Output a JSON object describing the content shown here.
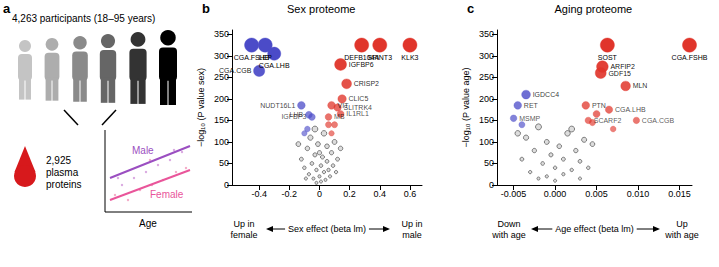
{
  "panel_a": {
    "panel_label": "a",
    "participants": "4,263 participants (18–95 years)",
    "proteins": "2,925\nplasma\nproteins",
    "male": "Male",
    "female": "Female",
    "x_label": "Age"
  },
  "chart_data": [
    {
      "type": "scatter",
      "panel_label": "b",
      "title": "Sex proteome",
      "x_label": "Sex effect (beta lm)",
      "y_label": "−log₁₀ (P value sex)",
      "x_annotations": {
        "left": "Up in\nfemale",
        "right": "Up in\nmale"
      },
      "xlim": [
        -0.58,
        0.68
      ],
      "xticks": [
        -0.4,
        -0.2,
        0,
        0.2,
        0.4,
        0.6
      ],
      "ylim": [
        0,
        360
      ],
      "yticks": [
        0,
        50,
        100,
        150,
        200,
        250,
        300,
        350
      ],
      "grid": false,
      "series": [
        {
          "color": "#4b4bc8",
          "marker": "circle",
          "x": [
            -0.45,
            -0.36,
            -0.3,
            -0.4,
            -0.12,
            -0.07,
            -0.05,
            -0.08,
            -0.1
          ],
          "y": [
            325,
            325,
            305,
            265,
            185,
            163,
            158,
            130,
            120
          ],
          "labels": [
            "CGA.FSHB",
            "LEP",
            "CGA.LHB",
            "CGA.CGB",
            "NUDT16L1",
            "LHB",
            "IGFBP3",
            null,
            null
          ]
        },
        {
          "color": "#e0352b",
          "marker": "circle",
          "x": [
            0.28,
            0.4,
            0.6,
            0.14,
            0.18,
            0.15,
            0.08,
            0.12,
            0.06,
            0.14,
            0.08,
            0.1,
            0.06
          ],
          "y": [
            325,
            325,
            325,
            280,
            235,
            200,
            185,
            180,
            158,
            165,
            120,
            140,
            140
          ],
          "labels": [
            "DEFB104A",
            "SPINT3",
            "KLK3",
            "IGFBP6",
            "CRISP2",
            "CLIC5",
            "VIT",
            "SLITRK4",
            "MB",
            "IL1RL1",
            null,
            null,
            null
          ]
        },
        {
          "color": "#dddddd",
          "marker": "circle",
          "x": [
            -0.12,
            -0.1,
            -0.08,
            -0.07,
            -0.06,
            -0.05,
            -0.04,
            -0.03,
            -0.02,
            -0.02,
            -0.01,
            0,
            0.01,
            0.01,
            0.02,
            0.03,
            0.03,
            0.04,
            0.05,
            0.05,
            0.06,
            0.07,
            0.08,
            0.09,
            0.1,
            0.11,
            0.12,
            -0.09,
            -0.14,
            0.14,
            -0.03,
            0
          ],
          "y": [
            60,
            40,
            85,
            25,
            110,
            50,
            15,
            70,
            35,
            5,
            95,
            20,
            45,
            8,
            65,
            30,
            120,
            12,
            55,
            90,
            35,
            20,
            75,
            45,
            100,
            30,
            60,
            15,
            95,
            85,
            130,
            75
          ],
          "labels": [
            null,
            null,
            null,
            null,
            null,
            null,
            null,
            null,
            null,
            null,
            null,
            null,
            null,
            null,
            null,
            null,
            null,
            null,
            null,
            null,
            null,
            null,
            null,
            null,
            null,
            null,
            null,
            null,
            null,
            null,
            null,
            null
          ]
        }
      ]
    },
    {
      "type": "scatter",
      "panel_label": "c",
      "title": "Aging proteome",
      "x_label": "Age effect (beta lm)",
      "y_label": "−log₁₀ (P value age)",
      "x_annotations": {
        "left": "Down\nwith age",
        "right": "Up\nwith age"
      },
      "xlim": [
        -0.007,
        0.0165
      ],
      "xticks": [
        -0.005,
        {
          "value": 0,
          "label": "0.000"
        },
        0.005,
        {
          "value": 0.01,
          "label": "0.010"
        },
        0.015
      ],
      "ylim": [
        0,
        360
      ],
      "yticks": [
        0,
        50,
        100,
        150,
        200,
        250,
        300,
        350
      ],
      "grid": false,
      "series": [
        {
          "color": "#4b4bc8",
          "marker": "circle",
          "x": [
            -0.0035,
            -0.0045,
            -0.005,
            -0.004
          ],
          "y": [
            210,
            185,
            155,
            140
          ],
          "labels": [
            "IGDCC4",
            "RET",
            "MSMP",
            null
          ]
        },
        {
          "color": "#e0352b",
          "marker": "circle",
          "x": [
            0.0063,
            0.0162,
            0.0057,
            0.0055,
            0.0085,
            0.0037,
            0.0065,
            0.004,
            0.0098,
            0.0045,
            0.005,
            0.007
          ],
          "y": [
            325,
            325,
            275,
            260,
            230,
            185,
            175,
            150,
            150,
            145,
            165,
            130
          ],
          "labels": [
            "SOST",
            "CGA.FSHB",
            "ARFIP2",
            "GDF15",
            "MLN",
            "PTN",
            "CGA.LHB",
            "SCARF2",
            "CGA.CGB",
            null,
            null,
            null
          ]
        },
        {
          "color": "#dddddd",
          "marker": "circle",
          "x": [
            -0.004,
            -0.003,
            -0.0035,
            -0.0025,
            -0.002,
            -0.0015,
            -0.001,
            -0.001,
            -0.0005,
            0,
            0,
            0.0005,
            0.001,
            0.001,
            0.0015,
            0.002,
            0.0025,
            0.003,
            0.003,
            0.0035,
            0.004,
            -0.0045,
            0.0045,
            -0.002,
            0.002
          ],
          "y": [
            60,
            30,
            110,
            80,
            15,
            50,
            100,
            20,
            70,
            10,
            40,
            90,
            25,
            60,
            120,
            35,
            80,
            15,
            55,
            105,
            40,
            120,
            95,
            135,
            130
          ],
          "labels": [
            null,
            null,
            null,
            null,
            null,
            null,
            null,
            null,
            null,
            null,
            null,
            null,
            null,
            null,
            null,
            null,
            null,
            null,
            null,
            null,
            null,
            null,
            null,
            null,
            null
          ]
        }
      ]
    }
  ]
}
